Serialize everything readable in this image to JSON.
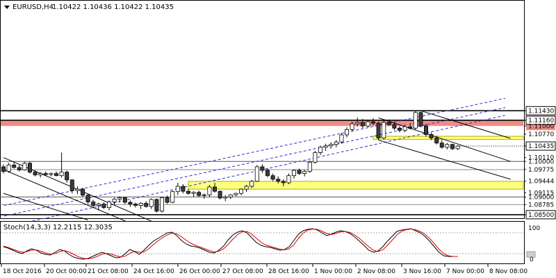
{
  "header": {
    "symbol": "EURUSD,H4",
    "ohlc": "1.10422 1.10436 1.10422 1.10435"
  },
  "indicator": {
    "label": "Stoch(14,3,3) 12.2115 12.3035",
    "scale_top": "100",
    "scale_bottom": "0"
  },
  "colors": {
    "candle_bull": "#ffffff",
    "candle_bear": "#3c3c3c",
    "resistance_zone": "#f08c84",
    "support_zone": "#ffff80",
    "channel_dashed": "#2b2bd6",
    "stoch_main": "#000000",
    "stoch_signal": "#e00000"
  },
  "chart_data": {
    "type": "candlestick",
    "symbol": "EURUSD",
    "timeframe": "H4",
    "ylim": [
      1.084,
      1.1455
    ],
    "price_levels": [
      "1.11430",
      "1.11160",
      "1.11000",
      "1.10770",
      "1.10435",
      "1.10110",
      "1.10000",
      "1.09775",
      "1.09444",
      "1.09115",
      "1.09000",
      "1.08785",
      "1.08500"
    ],
    "highlighted_levels": [
      {
        "label": "1.11430",
        "value": 1.1143,
        "style": "black-box"
      },
      {
        "label": "1.11160",
        "value": 1.1116,
        "style": "black-box"
      },
      {
        "label": "1.11000",
        "value": 1.11,
        "style": "white-text"
      },
      {
        "label": "1.10435",
        "value": 1.10435,
        "style": "current-price"
      },
      {
        "label": "1.10000",
        "value": 1.1,
        "style": "white-text"
      },
      {
        "label": "1.09000",
        "value": 1.09,
        "style": "white-text"
      },
      {
        "label": "1.08500",
        "value": 1.085,
        "style": "black-box"
      }
    ],
    "horizontal_lines": [
      1.1143,
      1.1116,
      1.1,
      1.09,
      1.085
    ],
    "zones": [
      {
        "name": "resistance",
        "from": 1.11,
        "to": 1.1116,
        "color": "#f08c84"
      },
      {
        "name": "support-upper",
        "from": 1.1062,
        "to": 1.1071,
        "color": "#ffff80"
      },
      {
        "name": "support-lower",
        "from": 1.0922,
        "to": 1.0944,
        "color": "#ffff80"
      }
    ],
    "x_labels": [
      "18 Oct 2016",
      "20 Oct 00:00",
      "21 Oct 08:00",
      "24 Oct 16:00",
      "26 Oct 00:00",
      "27 Oct 08:00",
      "28 Oct 16:00",
      "1 Nov 00:00",
      "2 Nov 08:00",
      "3 Nov 16:00",
      "7 Nov 00:00",
      "8 Nov 08:00"
    ],
    "candles": [
      [
        1.0985,
        1.0992,
        1.0966,
        1.0972
      ],
      [
        1.0972,
        1.0996,
        1.0968,
        1.099
      ],
      [
        1.099,
        1.0998,
        1.098,
        1.0983
      ],
      [
        1.0983,
        1.099,
        1.0972,
        1.0976
      ],
      [
        1.0976,
        1.0999,
        1.0974,
        1.0995
      ],
      [
        1.0995,
        1.1,
        1.0966,
        1.097
      ],
      [
        1.097,
        1.0975,
        1.0958,
        1.0962
      ],
      [
        1.0962,
        1.097,
        1.0955,
        1.0966
      ],
      [
        1.0966,
        1.0972,
        1.096,
        1.0963
      ],
      [
        1.0963,
        1.0969,
        1.0958,
        1.0966
      ],
      [
        1.0966,
        1.0972,
        1.0958,
        1.096
      ],
      [
        1.096,
        1.1025,
        1.0955,
        1.097
      ],
      [
        1.097,
        1.0974,
        1.094,
        1.0948
      ],
      [
        1.0948,
        1.095,
        1.091,
        1.0918
      ],
      [
        1.0918,
        1.093,
        1.0908,
        1.0922
      ],
      [
        1.0922,
        1.0926,
        1.09,
        1.0905
      ],
      [
        1.0905,
        1.0908,
        1.088,
        1.0886
      ],
      [
        1.0886,
        1.0892,
        1.087,
        1.0876
      ],
      [
        1.0876,
        1.0884,
        1.0862,
        1.088
      ],
      [
        1.088,
        1.0885,
        1.0866,
        1.087
      ],
      [
        1.087,
        1.089,
        1.0862,
        1.0886
      ],
      [
        1.0886,
        1.0898,
        1.0876,
        1.0894
      ],
      [
        1.0894,
        1.0902,
        1.0885,
        1.0898
      ],
      [
        1.0898,
        1.09,
        1.088,
        1.0885
      ],
      [
        1.0885,
        1.089,
        1.0872,
        1.088
      ],
      [
        1.088,
        1.0884,
        1.087,
        1.0876
      ],
      [
        1.0876,
        1.0885,
        1.0866,
        1.0882
      ],
      [
        1.0882,
        1.0888,
        1.087,
        1.0873
      ],
      [
        1.0873,
        1.0896,
        1.0866,
        1.0893
      ],
      [
        1.0893,
        1.0896,
        1.0856,
        1.086
      ],
      [
        1.086,
        1.09,
        1.0856,
        1.0898
      ],
      [
        1.0898,
        1.0904,
        1.088,
        1.0885
      ],
      [
        1.0885,
        1.0918,
        1.0882,
        1.0915
      ],
      [
        1.0915,
        1.094,
        1.0905,
        1.093
      ],
      [
        1.093,
        1.0936,
        1.091,
        1.0916
      ],
      [
        1.0916,
        1.0922,
        1.0906,
        1.091
      ],
      [
        1.091,
        1.0916,
        1.09,
        1.0913
      ],
      [
        1.0913,
        1.0918,
        1.09,
        1.0904
      ],
      [
        1.0904,
        1.091,
        1.0895,
        1.0906
      ],
      [
        1.0906,
        1.0934,
        1.09,
        1.0928
      ],
      [
        1.0928,
        1.094,
        1.0912,
        1.0916
      ],
      [
        1.0916,
        1.0918,
        1.0893,
        1.0897
      ],
      [
        1.0897,
        1.0905,
        1.0888,
        1.09
      ],
      [
        1.09,
        1.0908,
        1.0894,
        1.0906
      ],
      [
        1.0906,
        1.0912,
        1.0902,
        1.091
      ],
      [
        1.091,
        1.0924,
        1.0905,
        1.0922
      ],
      [
        1.0922,
        1.0934,
        1.0914,
        1.093
      ],
      [
        1.093,
        1.0948,
        1.0925,
        1.0944
      ],
      [
        1.0944,
        1.099,
        1.0942,
        1.0985
      ],
      [
        1.0985,
        1.0992,
        1.0968,
        1.0975
      ],
      [
        1.0975,
        1.098,
        1.0955,
        1.096
      ],
      [
        1.096,
        1.0966,
        1.0945,
        1.095
      ],
      [
        1.095,
        1.0958,
        1.0938,
        1.0944
      ],
      [
        1.0944,
        1.095,
        1.093,
        1.094
      ],
      [
        1.094,
        1.0966,
        1.0936,
        1.096
      ],
      [
        1.096,
        1.0978,
        1.0952,
        1.0975
      ],
      [
        1.0975,
        1.098,
        1.0962,
        1.0966
      ],
      [
        1.0966,
        1.0976,
        1.0958,
        1.0972
      ],
      [
        1.0972,
        1.1002,
        1.0968,
        1.0998
      ],
      [
        1.0998,
        1.103,
        1.0994,
        1.1025
      ],
      [
        1.1025,
        1.1045,
        1.1018,
        1.104
      ],
      [
        1.104,
        1.105,
        1.103,
        1.1044
      ],
      [
        1.1044,
        1.1054,
        1.1036,
        1.1048
      ],
      [
        1.1048,
        1.106,
        1.104,
        1.1055
      ],
      [
        1.1055,
        1.108,
        1.105,
        1.1075
      ],
      [
        1.1075,
        1.1096,
        1.1068,
        1.109
      ],
      [
        1.109,
        1.1112,
        1.1084,
        1.1106
      ],
      [
        1.1106,
        1.1124,
        1.1098,
        1.111
      ],
      [
        1.111,
        1.112,
        1.1094,
        1.11
      ],
      [
        1.11,
        1.1118,
        1.1096,
        1.1112
      ],
      [
        1.1112,
        1.1122,
        1.1102,
        1.1108
      ],
      [
        1.1108,
        1.1112,
        1.106,
        1.1066
      ],
      [
        1.1066,
        1.1116,
        1.1062,
        1.111
      ],
      [
        1.111,
        1.1118,
        1.11,
        1.1104
      ],
      [
        1.1104,
        1.1112,
        1.1088,
        1.1094
      ],
      [
        1.1094,
        1.11,
        1.1082,
        1.1088
      ],
      [
        1.1088,
        1.1104,
        1.1082,
        1.1098
      ],
      [
        1.1098,
        1.1108,
        1.109,
        1.1094
      ],
      [
        1.1094,
        1.1142,
        1.109,
        1.1138
      ],
      [
        1.1138,
        1.114,
        1.1096,
        1.11
      ],
      [
        1.11,
        1.1106,
        1.107,
        1.1076
      ],
      [
        1.1076,
        1.1082,
        1.106,
        1.1066
      ],
      [
        1.1066,
        1.1072,
        1.1048,
        1.1052
      ],
      [
        1.1052,
        1.106,
        1.1036,
        1.104
      ],
      [
        1.104,
        1.1052,
        1.1034,
        1.1048
      ],
      [
        1.1048,
        1.105,
        1.1032,
        1.1036
      ],
      [
        1.1036,
        1.1046,
        1.1032,
        1.10435
      ]
    ],
    "trendlines": [
      {
        "style": "dashed",
        "points": [
          [
            0.1,
            1.0876
          ],
          [
            95,
            1.1178
          ]
        ]
      },
      {
        "style": "dashed",
        "points": [
          [
            0.1,
            1.0846
          ],
          [
            95,
            1.1152
          ]
        ]
      },
      {
        "style": "dashed",
        "points": [
          [
            0.1,
            1.0814
          ],
          [
            95,
            1.113
          ]
        ]
      },
      {
        "style": "solid",
        "points": [
          [
            0,
            1.1011
          ],
          [
            30,
            1.0819
          ]
        ]
      },
      {
        "style": "solid",
        "points": [
          [
            0,
            1.0977
          ],
          [
            25,
            1.082
          ]
        ]
      },
      {
        "style": "solid",
        "points": [
          [
            0,
            1.091
          ],
          [
            16,
            1.0835
          ]
        ]
      },
      {
        "style": "solid",
        "points": [
          [
            79,
            1.1143
          ],
          [
            96,
            1.1065
          ]
        ]
      },
      {
        "style": "solid",
        "points": [
          [
            71,
            1.1123
          ],
          [
            96,
            1.1
          ]
        ]
      },
      {
        "style": "solid",
        "points": [
          [
            71,
            1.106
          ],
          [
            96,
            1.095
          ]
        ]
      }
    ],
    "stochastic": {
      "name": "Stoch(14,3,3)",
      "main_value": 12.2115,
      "signal_value": 12.3035,
      "ylim": [
        0,
        100
      ],
      "main": [
        40,
        36,
        30,
        24,
        20,
        28,
        34,
        30,
        22,
        18,
        16,
        24,
        32,
        28,
        18,
        10,
        6,
        4,
        6,
        12,
        18,
        24,
        20,
        14,
        8,
        10,
        20,
        32,
        26,
        18,
        30,
        44,
        56,
        64,
        72,
        80,
        82,
        72,
        58,
        48,
        42,
        40,
        36,
        30,
        24,
        22,
        30,
        42,
        60,
        74,
        82,
        86,
        80,
        66,
        52,
        44,
        40,
        38,
        34,
        30,
        32,
        40,
        58,
        76,
        86,
        90,
        92,
        88,
        80,
        72,
        76,
        82,
        86,
        84,
        78,
        68,
        56,
        44,
        30,
        24,
        28,
        40,
        56,
        70,
        84,
        88,
        90,
        92,
        86,
        80,
        70,
        56,
        40,
        24,
        14,
        12,
        12,
        12
      ],
      "signal": [
        42,
        38,
        33,
        28,
        24,
        26,
        30,
        31,
        27,
        22,
        19,
        20,
        26,
        29,
        25,
        18,
        11,
        7,
        5,
        7,
        12,
        18,
        21,
        19,
        14,
        11,
        13,
        21,
        27,
        24,
        25,
        34,
        46,
        57,
        66,
        74,
        79,
        77,
        69,
        59,
        50,
        44,
        39,
        34,
        29,
        25,
        27,
        34,
        47,
        62,
        75,
        83,
        84,
        76,
        64,
        53,
        45,
        41,
        37,
        33,
        31,
        34,
        46,
        64,
        79,
        88,
        91,
        90,
        85,
        78,
        75,
        78,
        83,
        84,
        81,
        74,
        64,
        52,
        40,
        30,
        26,
        31,
        44,
        59,
        74,
        84,
        89,
        91,
        89,
        84,
        76,
        64,
        49,
        33,
        20,
        14,
        12,
        12
      ]
    }
  }
}
